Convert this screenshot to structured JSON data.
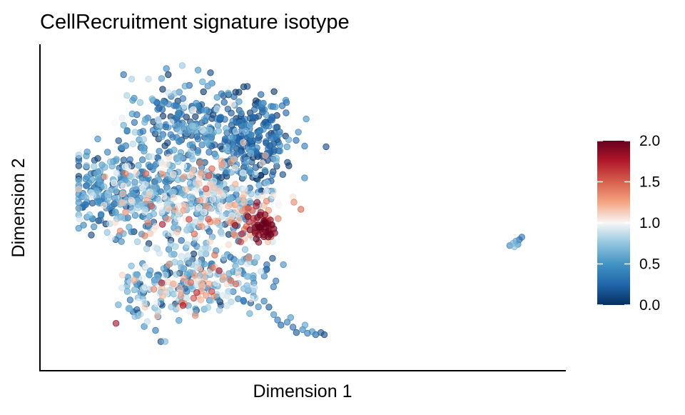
{
  "chart_data": {
    "type": "scatter",
    "title": "CellRecruitment signature isotype",
    "xlabel": "Dimension 1",
    "ylabel": "Dimension 2",
    "grid": false,
    "axis_ticks": false,
    "xlim": [
      0,
      100
    ],
    "ylim": [
      0,
      100
    ],
    "legend_position": "right",
    "colorbar": {
      "ticks": [
        "0.0",
        "0.5",
        "1.0",
        "1.5",
        "2.0"
      ],
      "range": [
        0,
        2
      ],
      "colors": [
        "#053061",
        "#2166ac",
        "#4393c3",
        "#92c5de",
        "#f7f7f7",
        "#f4a582",
        "#d6604d",
        "#b2182b",
        "#67001f"
      ]
    },
    "series": [
      {
        "clusters": [
          {
            "x": 25,
            "y": 75,
            "sx": 6,
            "sy": 8,
            "n": 220,
            "v": 0.35,
            "vs": 0.25
          },
          {
            "x": 38,
            "y": 72,
            "sx": 5,
            "sy": 8,
            "n": 260,
            "v": 0.2,
            "vs": 0.2
          },
          {
            "x": 8,
            "y": 55,
            "sx": 4,
            "sy": 7,
            "n": 150,
            "v": 0.35,
            "vs": 0.25
          },
          {
            "x": 19,
            "y": 52,
            "sx": 6,
            "sy": 7,
            "n": 220,
            "v": 0.6,
            "vs": 0.35
          },
          {
            "x": 32,
            "y": 50,
            "sx": 6,
            "sy": 7,
            "n": 240,
            "v": 0.75,
            "vs": 0.4
          },
          {
            "x": 40,
            "y": 44,
            "sx": 3,
            "sy": 4,
            "n": 70,
            "v": 1.3,
            "vs": 0.35
          },
          {
            "x": 24,
            "y": 25,
            "sx": 5,
            "sy": 8,
            "n": 170,
            "v": 0.65,
            "vs": 0.4
          },
          {
            "x": 30,
            "y": 22,
            "sx": 3,
            "sy": 4,
            "n": 40,
            "v": 1.15,
            "vs": 0.35
          },
          {
            "x": 16,
            "y": 18,
            "sx": 2.5,
            "sy": 4,
            "n": 40,
            "v": 0.6,
            "vs": 0.35
          },
          {
            "x": 38,
            "y": 26,
            "sx": 3,
            "sy": 5,
            "n": 60,
            "v": 0.4,
            "vs": 0.3
          }
        ],
        "hot_spot": {
          "x": 41.5,
          "y": 41.5,
          "sx": 1.3,
          "sy": 2.2,
          "n": 32,
          "v": 1.95,
          "vs": 0.1
        },
        "tail": [
          {
            "x": 41.5,
            "y": 17.5,
            "v": 0.35
          },
          {
            "x": 42.5,
            "y": 15.5,
            "v": 0.15
          },
          {
            "x": 43.5,
            "y": 13.0,
            "v": 0.45
          },
          {
            "x": 44.3,
            "y": 11.2,
            "v": 0.3
          },
          {
            "x": 45.0,
            "y": 9.5,
            "v": 0.2
          },
          {
            "x": 46.3,
            "y": 10.5,
            "v": 0.35
          },
          {
            "x": 47.5,
            "y": 8.8,
            "v": 0.25
          },
          {
            "x": 48.2,
            "y": 7.0,
            "v": 0.15
          },
          {
            "x": 49.5,
            "y": 8.0,
            "v": 0.4
          },
          {
            "x": 50.5,
            "y": 6.8,
            "v": 0.3
          },
          {
            "x": 51.5,
            "y": 7.3,
            "v": 0.45
          },
          {
            "x": 52.2,
            "y": 6.3,
            "v": 0.2
          },
          {
            "x": 53.3,
            "y": 7.0,
            "v": 0.15
          },
          {
            "x": 54.0,
            "y": 6.3,
            "v": 0.1
          },
          {
            "x": 50.0,
            "y": 9.5,
            "v": 0.55
          },
          {
            "x": 47.0,
            "y": 12.0,
            "v": 0.5
          }
        ],
        "outliers": [
          {
            "x": 24.5,
            "y": 96.0,
            "v": 0.75
          },
          {
            "x": 14.0,
            "y": 91.5,
            "v": 0.8
          },
          {
            "x": 17.5,
            "y": 91.5,
            "v": 0.85
          },
          {
            "x": 13.0,
            "y": 86.0,
            "v": 0.8
          },
          {
            "x": 27.8,
            "y": 94.5,
            "v": 0.5
          },
          {
            "x": 30.5,
            "y": 90.0,
            "v": 0.7
          },
          {
            "x": 12.0,
            "y": 78.5,
            "v": 0.95
          },
          {
            "x": 10.5,
            "y": 77.0,
            "v": 1.0
          },
          {
            "x": 19.5,
            "y": 78.0,
            "v": 0.9
          },
          {
            "x": 40.0,
            "y": 32.0,
            "v": 0.75
          },
          {
            "x": 39.5,
            "y": 22.0,
            "v": 0.85
          }
        ],
        "island": [
          {
            "x": 92.5,
            "y": 36.0,
            "v": 0.4
          },
          {
            "x": 93.2,
            "y": 36.8,
            "v": 0.65
          },
          {
            "x": 93.8,
            "y": 37.5,
            "v": 0.55
          },
          {
            "x": 94.5,
            "y": 38.0,
            "v": 0.25
          },
          {
            "x": 95.0,
            "y": 38.8,
            "v": 0.3
          },
          {
            "x": 93.5,
            "y": 35.6,
            "v": 0.7
          },
          {
            "x": 94.2,
            "y": 36.4,
            "v": 0.45
          }
        ]
      }
    ]
  }
}
